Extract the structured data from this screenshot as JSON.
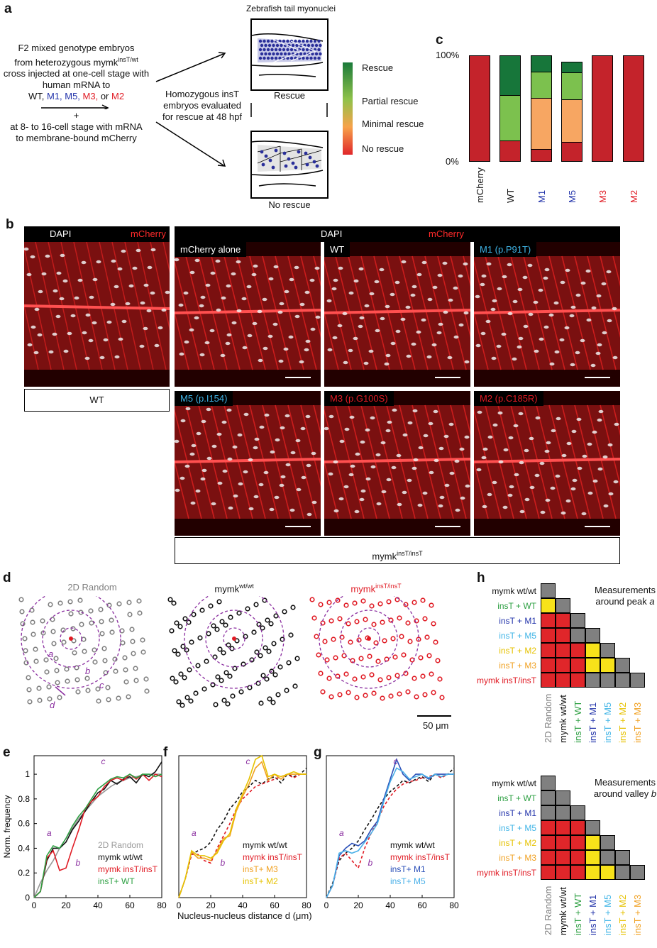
{
  "panel_labels": {
    "a": "a",
    "b": "b",
    "c": "c",
    "d": "d",
    "e": "e",
    "f": "f",
    "g": "g",
    "h": "h"
  },
  "panel_a": {
    "protocol_line1": "F2 mixed genotype embryos",
    "protocol_line2": "from heterozygous mymk",
    "protocol_line2_sup": "insT/wt",
    "protocol_line3": "cross injected at one-cell stage with",
    "protocol_line4": "human mRNA to",
    "mrna_list": [
      {
        "text": "WT, ",
        "color": "#111111"
      },
      {
        "text": "M1, ",
        "color": "#2233aa"
      },
      {
        "text": "M5, ",
        "color": "#2233aa"
      },
      {
        "text": "M3, ",
        "color": "#e01b24"
      },
      {
        "text": "or ",
        "color": "#111111"
      },
      {
        "text": "M2",
        "color": "#e01b24"
      }
    ],
    "plus": "+",
    "protocol_line6": "at 8- to 16-cell stage with mRNA",
    "protocol_line7": "to membrane-bound mCherry",
    "middle_text1": "Homozygous insT",
    "middle_text2": "embryos evaluated",
    "middle_text3": "for rescue at 48 hpf",
    "top_title": "Zebrafish tail myonuclei",
    "rescue_label": "Rescue",
    "no_rescue_label": "No rescue",
    "legend": [
      {
        "label": "Rescue",
        "color": "#1a7a3a"
      },
      {
        "label": "Partial rescue",
        "color": "#8fc24a"
      },
      {
        "label": "Minimal rescue",
        "color": "#f7a24a"
      },
      {
        "label": "No rescue",
        "color": "#e0262a"
      }
    ]
  },
  "chart_data": [
    {
      "type": "bar",
      "panel": "c",
      "ylim": [
        0,
        100
      ],
      "ytick_labels": [
        "100%",
        "0%"
      ],
      "categories": [
        "mCherry",
        "WT",
        "M1",
        "M5",
        "M3",
        "M2"
      ],
      "category_colors": [
        "#111111",
        "#111111",
        "#2233aa",
        "#2233aa",
        "#e01b24",
        "#e01b24"
      ],
      "series": [
        {
          "name": "No rescue",
          "color": "#c4232b",
          "values": [
            100,
            20,
            12,
            19,
            100,
            100
          ]
        },
        {
          "name": "Minimal rescue",
          "color": "#f7a662",
          "values": [
            0,
            0,
            48,
            40,
            0,
            0
          ]
        },
        {
          "name": "Partial rescue",
          "color": "#7cc14e",
          "values": [
            0,
            43,
            25,
            25,
            0,
            0
          ]
        },
        {
          "name": "Rescue",
          "color": "#17763a",
          "values": [
            0,
            37,
            15,
            10,
            0,
            0
          ]
        }
      ]
    },
    {
      "type": "line",
      "panel": "e",
      "ylabel": "Norm. frequency",
      "xlim": [
        0,
        80
      ],
      "ylim": [
        0,
        1.15
      ],
      "xticks": [
        "0",
        "20",
        "40",
        "60",
        "80"
      ],
      "yticks": [
        "0",
        "0.2",
        "0.4",
        "0.6",
        "0.8",
        "1"
      ],
      "annotations": [
        "a",
        "b",
        "c"
      ],
      "x": [
        0,
        4,
        8,
        12,
        16,
        20,
        24,
        28,
        32,
        36,
        40,
        44,
        48,
        52,
        56,
        60,
        64,
        68,
        72,
        76,
        80
      ],
      "series": [
        {
          "name": "2D Random",
          "color": "#999999",
          "values": [
            0,
            0.12,
            0.22,
            0.3,
            0.4,
            0.48,
            0.56,
            0.64,
            0.7,
            0.76,
            0.82,
            0.86,
            0.9,
            0.93,
            0.95,
            0.97,
            0.98,
            0.99,
            1.0,
            1.0,
            1.0
          ]
        },
        {
          "name": "mymk wt/wt",
          "color": "#111111",
          "values": [
            0,
            0.05,
            0.3,
            0.4,
            0.4,
            0.45,
            0.55,
            0.62,
            0.7,
            0.78,
            0.85,
            0.88,
            0.95,
            0.92,
            0.96,
            0.98,
            0.93,
            1.0,
            0.98,
            1.02,
            1.1
          ]
        },
        {
          "name": "mymk insT/insT",
          "color": "#e01b24",
          "values": [
            0,
            0.05,
            0.32,
            0.38,
            0.22,
            0.24,
            0.4,
            0.55,
            0.72,
            0.78,
            0.82,
            0.9,
            0.95,
            0.97,
            0.95,
            1.0,
            0.96,
            1.0,
            0.95,
            1.0,
            0.98
          ]
        },
        {
          "name": "insT+ WT",
          "color": "#2ea043",
          "values": [
            0,
            0.05,
            0.34,
            0.42,
            0.4,
            0.48,
            0.58,
            0.66,
            0.72,
            0.8,
            0.88,
            0.92,
            0.96,
            0.98,
            0.97,
            1.0,
            0.97,
            1.0,
            1.0,
            0.98,
            1.0
          ]
        }
      ]
    },
    {
      "type": "line",
      "panel": "f",
      "xlabel": "Nucleus-nucleus distance d (μm)",
      "xlim": [
        0,
        80
      ],
      "ylim": [
        0,
        1.15
      ],
      "xticks": [
        "0",
        "20",
        "40",
        "60",
        "80"
      ],
      "annotations": [
        "a",
        "b",
        "c"
      ],
      "x": [
        0,
        4,
        8,
        12,
        16,
        20,
        24,
        28,
        32,
        36,
        40,
        44,
        48,
        52,
        56,
        60,
        64,
        68,
        72,
        76,
        80
      ],
      "series": [
        {
          "name": "mymk wt/wt",
          "color": "#111111",
          "values": [
            0,
            0.15,
            0.35,
            0.38,
            0.4,
            0.45,
            0.55,
            0.62,
            0.72,
            0.78,
            0.86,
            0.9,
            0.95,
            0.92,
            0.96,
            0.98,
            0.93,
            1.0,
            0.98,
            1.0,
            1.05
          ]
        },
        {
          "name": "mymk insT/insT",
          "color": "#e01b24",
          "values": [
            0,
            0.15,
            0.35,
            0.35,
            0.3,
            0.28,
            0.4,
            0.5,
            0.6,
            0.72,
            0.8,
            0.85,
            0.9,
            0.92,
            0.94,
            0.96,
            0.98,
            1.0,
            0.97,
            1.0,
            1.0
          ]
        },
        {
          "name": "insT+ M3",
          "color": "#f0a020",
          "values": [
            0,
            0.15,
            0.37,
            0.32,
            0.32,
            0.3,
            0.38,
            0.48,
            0.5,
            0.7,
            0.82,
            0.92,
            1.05,
            1.1,
            0.95,
            1.0,
            0.96,
            1.0,
            1.0,
            1.0,
            1.0
          ]
        },
        {
          "name": "insT+ M2",
          "color": "#e6c200",
          "values": [
            0,
            0.15,
            0.38,
            0.34,
            0.34,
            0.32,
            0.36,
            0.46,
            0.52,
            0.72,
            0.84,
            0.96,
            1.12,
            1.15,
            0.98,
            1.0,
            0.98,
            1.0,
            1.02,
            1.0,
            1.0
          ]
        }
      ]
    },
    {
      "type": "line",
      "panel": "g",
      "xlim": [
        0,
        80
      ],
      "ylim": [
        0,
        1.15
      ],
      "xticks": [
        "0",
        "20",
        "40",
        "60",
        "80"
      ],
      "annotations": [
        "a",
        "b",
        "c"
      ],
      "x": [
        0,
        4,
        8,
        12,
        16,
        20,
        24,
        28,
        32,
        36,
        40,
        44,
        48,
        52,
        56,
        60,
        64,
        68,
        72,
        76,
        80
      ],
      "series": [
        {
          "name": "mymk wt/wt",
          "color": "#111111",
          "values": [
            0,
            0.12,
            0.3,
            0.36,
            0.4,
            0.46,
            0.55,
            0.63,
            0.72,
            0.8,
            0.86,
            0.9,
            0.95,
            0.93,
            0.96,
            0.98,
            0.94,
            1.0,
            0.98,
            1.0,
            1.05
          ]
        },
        {
          "name": "mymk insT/insT",
          "color": "#e01b24",
          "values": [
            0,
            0.1,
            0.32,
            0.36,
            0.3,
            0.24,
            0.4,
            0.52,
            0.62,
            0.74,
            0.82,
            0.88,
            0.92,
            0.94,
            0.95,
            0.97,
            0.98,
            1.0,
            0.97,
            1.0,
            1.0
          ]
        },
        {
          "name": "insT+ M1",
          "color": "#2a4fb8",
          "values": [
            0,
            0.1,
            0.34,
            0.4,
            0.44,
            0.42,
            0.46,
            0.55,
            0.62,
            0.8,
            0.96,
            1.12,
            1.0,
            0.95,
            1.0,
            1.0,
            0.96,
            1.0,
            1.0,
            1.0,
            1.0
          ]
        },
        {
          "name": "insT+ M5",
          "color": "#4ab0e8",
          "values": [
            0,
            0.1,
            0.36,
            0.38,
            0.36,
            0.38,
            0.45,
            0.52,
            0.6,
            0.78,
            0.94,
            1.05,
            1.02,
            0.96,
            0.98,
            1.0,
            0.97,
            1.0,
            0.98,
            1.0,
            1.0
          ]
        }
      ]
    },
    {
      "type": "heatmap",
      "panel": "h-top",
      "title_line1": "Measurements",
      "title_line2": "around peak",
      "title_italic": "a",
      "rows": [
        "mymk wt/wt",
        "insT + WT",
        "insT + M1",
        "insT + M5",
        "insT + M2",
        "insT + M3",
        "mymk insT/insT"
      ],
      "cols": [
        "2D Random",
        "mymk wt/wt",
        "insT + WT",
        "insT + M1",
        "insT + M5",
        "insT + M2",
        "insT + M3"
      ],
      "values": [
        [
          "gray"
        ],
        [
          "yellow",
          "gray"
        ],
        [
          "red",
          "red",
          "gray"
        ],
        [
          "red",
          "red",
          "gray",
          "gray"
        ],
        [
          "red",
          "red",
          "red",
          "yellow",
          "gray"
        ],
        [
          "red",
          "red",
          "red",
          "yellow",
          "yellow",
          "gray"
        ],
        [
          "red",
          "red",
          "red",
          "gray",
          "gray",
          "gray",
          "gray"
        ]
      ]
    },
    {
      "type": "heatmap",
      "panel": "h-bottom",
      "title_line1": "Measurements",
      "title_line2": "around valley",
      "title_italic": "b",
      "rows": [
        "mymk wt/wt",
        "insT + WT",
        "insT + M1",
        "insT + M5",
        "insT + M2",
        "insT + M3",
        "mymk insT/insT"
      ],
      "cols": [
        "2D Random",
        "mymk wt/wt",
        "insT + WT",
        "insT + M1",
        "insT + M5",
        "insT + M2",
        "insT + M3"
      ],
      "values": [
        [
          "gray"
        ],
        [
          "gray",
          "gray"
        ],
        [
          "gray",
          "gray",
          "gray"
        ],
        [
          "red",
          "red",
          "red",
          "gray"
        ],
        [
          "red",
          "red",
          "red",
          "yellow",
          "gray"
        ],
        [
          "red",
          "red",
          "red",
          "yellow",
          "gray",
          "gray"
        ],
        [
          "red",
          "red",
          "red",
          "yellow",
          "yellow",
          "gray",
          "gray"
        ]
      ]
    }
  ],
  "heatmap_colors": {
    "red": "#e0262a",
    "yellow": "#f7e21a",
    "gray": "#808080"
  },
  "row_label_colors": [
    "#111111",
    "#2ea043",
    "#2233aa",
    "#3fb4e6",
    "#e6c200",
    "#f0a020",
    "#e01b24"
  ],
  "col_label_colors": [
    "#808080",
    "#111111",
    "#2ea043",
    "#2233aa",
    "#3fb4e6",
    "#e6c200",
    "#f0a020"
  ],
  "panel_b": {
    "header_left_dapi": "DAPI",
    "header_left_mcherry": "mCherry",
    "header_right_dapi": "DAPI",
    "header_right_mcherry": "mCherry",
    "footer_left": "WT",
    "footer_right": "mymk",
    "footer_right_sup": "insT/insT",
    "tiles": [
      {
        "label": "mCherry alone",
        "color": "#ffffff"
      },
      {
        "label": "WT",
        "color": "#ffffff"
      },
      {
        "label": "M1 (p.P91T)",
        "color": "#3fb4e6"
      },
      {
        "label": "M5 (p.I154)",
        "color": "#3fb4e6"
      },
      {
        "label": "M3 (p.G100S)",
        "color": "#e01b24"
      },
      {
        "label": "M2 (p.C185R)",
        "color": "#e01b24"
      }
    ]
  },
  "panel_d": {
    "titles": [
      {
        "text": "2D Random",
        "sup": "",
        "color": "#808080"
      },
      {
        "text": "mymk",
        "sup": "wt/wt",
        "color": "#111111"
      },
      {
        "text": "mymk",
        "sup": "insT/insT",
        "color": "#e01b24"
      }
    ],
    "labels": {
      "a": "a",
      "b": "b",
      "c": "c",
      "d": "d"
    },
    "scale": "50 μm"
  }
}
